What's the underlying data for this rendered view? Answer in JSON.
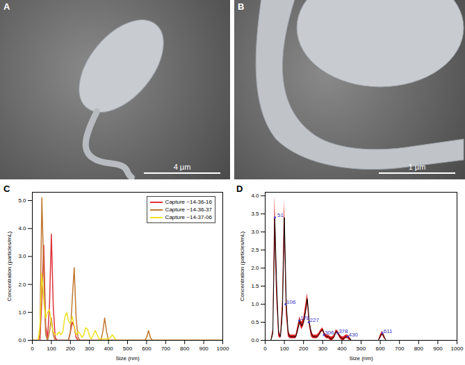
{
  "images": [
    {
      "label": "A",
      "scale_bar": "4 µm"
    },
    {
      "label": "B",
      "scale_bar": "1 µm"
    }
  ],
  "chart_data": [
    {
      "type": "line",
      "title": "C",
      "x_label": "Size (nm)",
      "y_label": "Concentration (particles/mL)",
      "x": [
        0,
        10,
        20,
        30,
        40,
        50,
        60,
        70,
        80,
        90,
        100,
        110,
        120,
        130,
        140,
        150,
        160,
        170,
        180,
        190,
        200,
        210,
        220,
        230,
        240,
        250,
        260,
        270,
        280,
        290,
        300,
        310,
        320,
        330,
        340,
        350,
        360,
        370,
        380,
        390,
        400,
        410,
        420,
        430,
        440,
        450,
        460,
        470,
        480,
        490,
        500,
        510,
        520,
        530,
        540,
        550,
        560,
        570,
        580,
        590,
        600,
        610,
        620,
        630,
        640,
        650,
        1000
      ],
      "series": [
        {
          "name": "Capture ~14-36-16",
          "color": "#e0303a",
          "values": [
            0,
            0,
            0,
            0,
            0,
            1.5,
            3.4,
            0.5,
            0.1,
            1.2,
            3.8,
            1.2,
            0.1,
            0,
            0,
            0,
            0,
            0,
            0,
            0,
            0.3,
            0.65,
            0.5,
            0.1,
            0,
            0,
            0,
            0,
            0,
            0,
            0,
            0,
            0,
            0,
            0,
            0,
            0,
            0,
            0,
            0,
            0,
            0,
            0,
            0,
            0,
            0,
            0,
            0,
            0,
            0,
            0,
            0,
            0,
            0,
            0,
            0,
            0,
            0,
            0,
            0,
            0,
            0,
            0,
            0,
            0,
            0,
            0
          ]
        },
        {
          "name": "Capture ~14-36-37",
          "color": "#c07830",
          "values": [
            0,
            0,
            0,
            0,
            0.2,
            5.1,
            2.5,
            0.2,
            0,
            0.3,
            0.8,
            0.2,
            0,
            0,
            0,
            0,
            0,
            0,
            0,
            0,
            0.3,
            1.5,
            2.6,
            0.8,
            0.1,
            0,
            0,
            0,
            0,
            0,
            0,
            0,
            0,
            0,
            0,
            0,
            0,
            0.3,
            0.8,
            0.3,
            0,
            0,
            0,
            0,
            0,
            0,
            0,
            0,
            0,
            0,
            0,
            0,
            0,
            0,
            0,
            0,
            0,
            0,
            0,
            0,
            0.1,
            0.35,
            0.1,
            0,
            0,
            0,
            0
          ]
        },
        {
          "name": "Capture ~14-37-06",
          "color": "#f0e020",
          "values": [
            0,
            0,
            0,
            0,
            0.5,
            2.4,
            1.4,
            0.8,
            1.0,
            1.1,
            0.6,
            0.3,
            0.2,
            0.2,
            0.3,
            0.2,
            0.3,
            0.8,
            1.0,
            0.7,
            0.6,
            0.85,
            0.5,
            0.2,
            0.3,
            0.25,
            0.1,
            0.2,
            0.45,
            0.4,
            0.15,
            0.05,
            0.2,
            0.35,
            0.2,
            0.05,
            0.05,
            0.05,
            0.05,
            0.05,
            0.05,
            0.1,
            0.2,
            0.1,
            0,
            0,
            0,
            0,
            0,
            0,
            0,
            0,
            0,
            0,
            0,
            0,
            0,
            0,
            0,
            0,
            0,
            0,
            0,
            0,
            0,
            0,
            0
          ]
        }
      ],
      "xlim": [
        0,
        1000
      ],
      "xticks": [
        0,
        100,
        200,
        300,
        400,
        500,
        600,
        700,
        800,
        900,
        1000
      ],
      "ylim": [
        0,
        5.3
      ],
      "yticks": [
        {
          "value": 0,
          "label": "0.0"
        },
        {
          "value": 1,
          "label": "1.0"
        },
        {
          "value": 2,
          "label": "2.0"
        },
        {
          "value": 3,
          "label": "3.0"
        },
        {
          "value": 4,
          "label": "4.0"
        },
        {
          "value": 5,
          "label": "5.0"
        }
      ],
      "legend": "top-right",
      "grid": false
    },
    {
      "type": "line",
      "title": "D",
      "color": "#000000",
      "x_label": "Size (nm)",
      "y_label": "Concentration (particles/mL)",
      "x": [
        0,
        10,
        20,
        30,
        40,
        50,
        60,
        70,
        80,
        90,
        100,
        110,
        120,
        130,
        140,
        150,
        160,
        170,
        180,
        190,
        200,
        210,
        220,
        230,
        240,
        250,
        260,
        270,
        280,
        290,
        300,
        310,
        320,
        330,
        340,
        350,
        360,
        370,
        380,
        390,
        400,
        410,
        420,
        430,
        440,
        450,
        460,
        470,
        480,
        490,
        500,
        510,
        520,
        530,
        540,
        550,
        560,
        570,
        580,
        590,
        600,
        610,
        620,
        630,
        640,
        650,
        1000
      ],
      "values": [
        0,
        0,
        0,
        0,
        0.2,
        3.4,
        1.5,
        0.2,
        0.1,
        0.8,
        3.4,
        1.0,
        0.2,
        0.1,
        0.1,
        0.1,
        0.1,
        0.3,
        0.55,
        0.4,
        0.5,
        0.8,
        1.15,
        0.5,
        0.2,
        0.1,
        0.1,
        0.1,
        0.15,
        0.25,
        0.3,
        0.15,
        0.1,
        0.1,
        0.05,
        0.05,
        0.1,
        0.25,
        0.2,
        0.1,
        0.05,
        0.05,
        0.1,
        0.1,
        0.05,
        0,
        0,
        0,
        0,
        0,
        0,
        0,
        0,
        0,
        0,
        0,
        0,
        0,
        0,
        0,
        0.1,
        0.2,
        0.1,
        0,
        0,
        0,
        0
      ],
      "error": [
        0,
        0,
        0,
        0,
        0.1,
        0.6,
        0.4,
        0.1,
        0.05,
        0.3,
        0.5,
        0.3,
        0.1,
        0.05,
        0.05,
        0.05,
        0.05,
        0.1,
        0.1,
        0.1,
        0.1,
        0.15,
        0.15,
        0.1,
        0.1,
        0.05,
        0.05,
        0.05,
        0.05,
        0.05,
        0.05,
        0.05,
        0.05,
        0.05,
        0.05,
        0.05,
        0.05,
        0.05,
        0.05,
        0.05,
        0.05,
        0.05,
        0.05,
        0.05,
        0.05,
        0,
        0,
        0,
        0,
        0,
        0,
        0,
        0,
        0,
        0,
        0,
        0,
        0,
        0,
        0,
        0.05,
        0.05,
        0.05,
        0,
        0,
        0,
        0
      ],
      "peak_labels": [
        51,
        106,
        178,
        227,
        306,
        378,
        430,
        611
      ],
      "xlim": [
        0,
        1000
      ],
      "xticks": [
        0,
        100,
        200,
        300,
        400,
        500,
        600,
        700,
        800,
        900,
        1000
      ],
      "ylim": [
        0,
        4.1
      ],
      "yticks": [
        {
          "value": 0,
          "label": "0.0"
        },
        {
          "value": 0.5,
          "label": "0.5"
        },
        {
          "value": 1,
          "label": "1.0"
        },
        {
          "value": 1.5,
          "label": "1.5"
        },
        {
          "value": 2,
          "label": "2.0"
        },
        {
          "value": 2.5,
          "label": "2.5"
        },
        {
          "value": 3,
          "label": "3.0"
        },
        {
          "value": 3.5,
          "label": "3.5"
        },
        {
          "value": 4,
          "label": "4.0"
        }
      ],
      "grid": false
    }
  ]
}
